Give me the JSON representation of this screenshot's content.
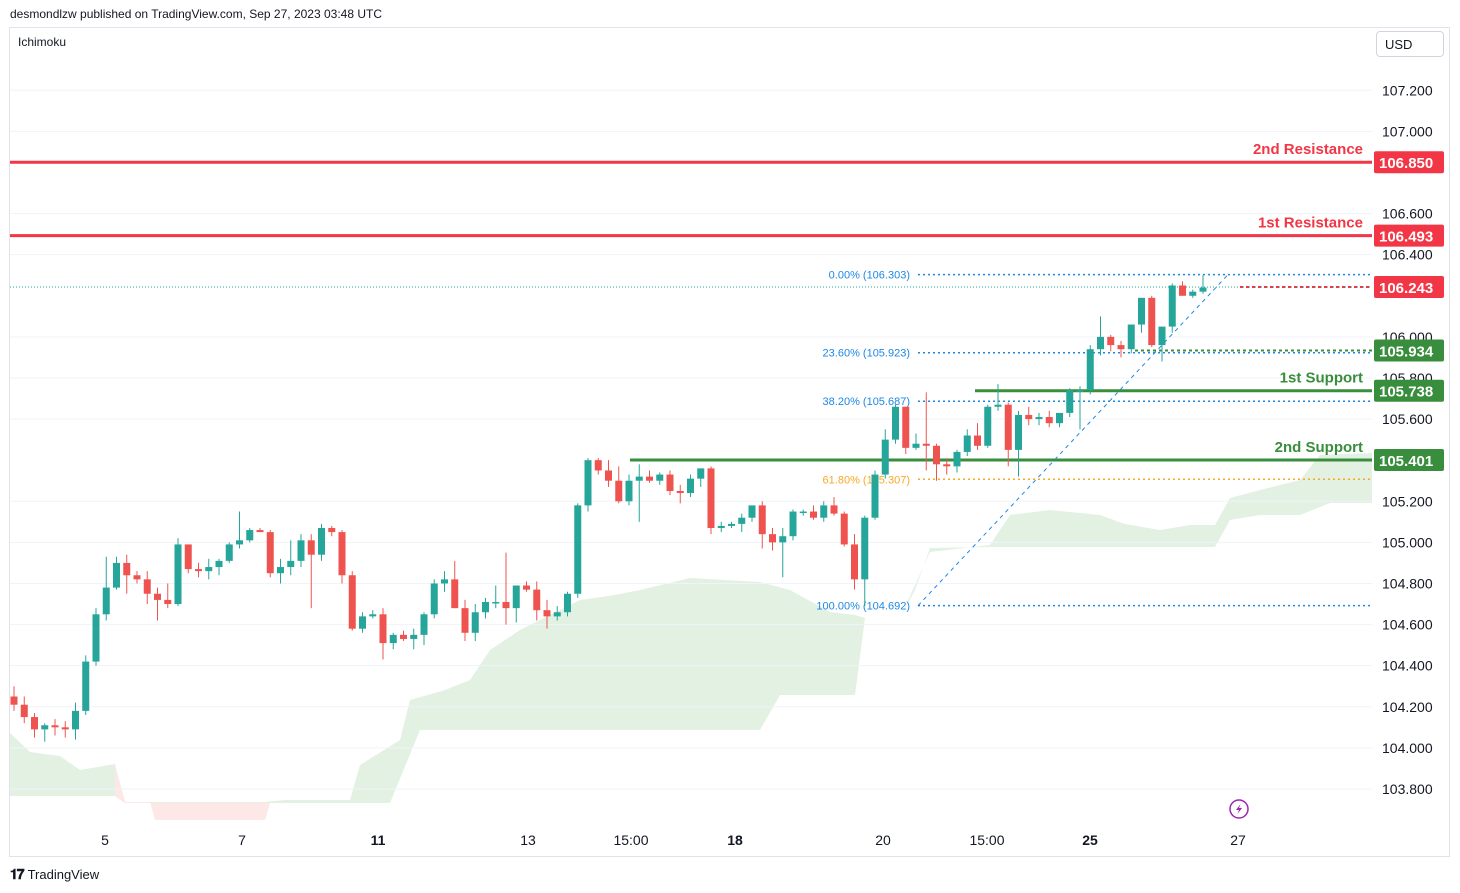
{
  "header": {
    "publisher": "desmondlzw published on TradingView.com, Sep 27, 2023 03:48 UTC"
  },
  "indicator": {
    "name": "Ichimoku"
  },
  "currency": {
    "label": "USD"
  },
  "footer": {
    "brand": "TradingView"
  },
  "colors": {
    "up": "#26a69a",
    "down": "#ef5350",
    "resistance": "#f23645",
    "support": "#388e3c",
    "fib": "#2962ff",
    "fib618": "#f9a825",
    "cloud_bull": "#e3f1e3",
    "cloud_bear": "#fde7e7",
    "grid": "#f0f3fa"
  },
  "chart_data": {
    "type": "candlestick",
    "symbol_note": "",
    "y_axis": {
      "min": 103.7,
      "max": 107.35,
      "ticks": [
        "107.200",
        "107.000",
        "106.600",
        "106.400",
        "106.000",
        "105.800",
        "105.600",
        "105.200",
        "105.000",
        "104.800",
        "104.600",
        "104.400",
        "104.200",
        "104.000",
        "103.800"
      ]
    },
    "x_axis": {
      "ticks": [
        {
          "label": "5",
          "bold": false
        },
        {
          "label": "7",
          "bold": false
        },
        {
          "label": "11",
          "bold": true
        },
        {
          "label": "13",
          "bold": false
        },
        {
          "label": "15:00",
          "bold": false
        },
        {
          "label": "18",
          "bold": true
        },
        {
          "label": "20",
          "bold": false
        },
        {
          "label": "15:00",
          "bold": false
        },
        {
          "label": "25",
          "bold": true
        },
        {
          "label": "27",
          "bold": false
        }
      ]
    },
    "levels": [
      {
        "name": "2nd Resistance",
        "value": 106.85,
        "tag": "106.850",
        "kind": "resistance"
      },
      {
        "name": "1st Resistance",
        "value": 106.493,
        "tag": "106.493",
        "kind": "resistance"
      },
      {
        "name": "1st Support",
        "value": 105.738,
        "tag": "105.738",
        "kind": "support"
      },
      {
        "name": "2nd Support",
        "value": 105.401,
        "tag": "105.401",
        "kind": "support"
      }
    ],
    "current_price": {
      "value": 106.243,
      "tag": "106.243"
    },
    "pivot": {
      "value": 105.934,
      "tag": "105.934"
    },
    "fibonacci": [
      {
        "label": "0.00% (106.303)",
        "value": 106.303
      },
      {
        "label": "23.60% (105.923)",
        "value": 105.923
      },
      {
        "label": "38.20% (105.687)",
        "value": 105.687
      },
      {
        "label": "61.80% (105.307)",
        "value": 105.307
      },
      {
        "label": "100.00% (104.692)",
        "value": 104.692
      }
    ],
    "candles": [
      [
        104.25,
        104.3,
        104.18,
        104.21
      ],
      [
        104.21,
        104.25,
        104.12,
        104.15
      ],
      [
        104.15,
        104.17,
        104.05,
        104.09
      ],
      [
        104.09,
        104.12,
        104.03,
        104.11
      ],
      [
        104.11,
        104.14,
        104.06,
        104.1
      ],
      [
        104.1,
        104.13,
        104.05,
        104.09
      ],
      [
        104.09,
        104.22,
        104.04,
        104.18
      ],
      [
        104.18,
        104.45,
        104.16,
        104.42
      ],
      [
        104.42,
        104.68,
        104.4,
        104.65
      ],
      [
        104.65,
        104.93,
        104.62,
        104.78
      ],
      [
        104.78,
        104.93,
        104.77,
        104.9
      ],
      [
        104.9,
        104.94,
        104.75,
        104.84
      ],
      [
        104.84,
        104.86,
        104.8,
        104.82
      ],
      [
        104.82,
        104.86,
        104.7,
        104.75
      ],
      [
        104.75,
        104.78,
        104.62,
        104.72
      ],
      [
        104.72,
        104.8,
        104.68,
        104.7
      ],
      [
        104.7,
        105.02,
        104.69,
        104.99
      ],
      [
        104.99,
        104.99,
        104.85,
        104.87
      ],
      [
        104.87,
        104.9,
        104.83,
        104.86
      ],
      [
        104.86,
        104.92,
        104.82,
        104.88
      ],
      [
        104.88,
        104.92,
        104.84,
        104.91
      ],
      [
        104.91,
        105.0,
        104.9,
        104.99
      ],
      [
        104.99,
        105.15,
        104.97,
        105.01
      ],
      [
        105.01,
        105.07,
        105.0,
        105.06
      ],
      [
        105.06,
        105.07,
        105.05,
        105.05
      ],
      [
        105.05,
        105.06,
        104.83,
        104.85
      ],
      [
        104.85,
        104.92,
        104.8,
        104.88
      ],
      [
        104.88,
        105.01,
        104.84,
        104.91
      ],
      [
        104.91,
        105.04,
        104.88,
        105.01
      ],
      [
        105.01,
        105.04,
        104.68,
        104.94
      ],
      [
        104.94,
        105.09,
        104.91,
        105.07
      ],
      [
        105.07,
        105.08,
        105.03,
        105.05
      ],
      [
        105.05,
        105.06,
        104.8,
        104.84
      ],
      [
        104.84,
        104.86,
        104.57,
        104.58
      ],
      [
        104.58,
        104.66,
        104.56,
        104.64
      ],
      [
        104.64,
        104.67,
        104.63,
        104.65
      ],
      [
        104.65,
        104.68,
        104.43,
        104.51
      ],
      [
        104.51,
        104.56,
        104.48,
        104.55
      ],
      [
        104.55,
        104.57,
        104.52,
        104.53
      ],
      [
        104.53,
        104.58,
        104.48,
        104.55
      ],
      [
        104.55,
        104.66,
        104.5,
        104.65
      ],
      [
        104.65,
        104.82,
        104.63,
        104.8
      ],
      [
        104.8,
        104.86,
        104.76,
        104.82
      ],
      [
        104.82,
        104.91,
        104.68,
        104.68
      ],
      [
        104.68,
        104.72,
        104.52,
        104.56
      ],
      [
        104.56,
        104.7,
        104.52,
        104.66
      ],
      [
        104.66,
        104.73,
        104.63,
        104.71
      ],
      [
        104.71,
        104.79,
        104.68,
        104.71
      ],
      [
        104.71,
        104.95,
        104.6,
        104.68
      ],
      [
        104.68,
        104.78,
        104.61,
        104.79
      ],
      [
        104.79,
        104.81,
        104.76,
        104.77
      ],
      [
        104.77,
        104.81,
        104.62,
        104.67
      ],
      [
        104.67,
        104.72,
        104.58,
        104.64
      ],
      [
        104.64,
        104.69,
        104.62,
        104.66
      ],
      [
        104.66,
        104.76,
        104.64,
        104.75
      ],
      [
        104.75,
        105.19,
        104.73,
        105.18
      ],
      [
        105.18,
        105.41,
        105.15,
        105.4
      ],
      [
        105.4,
        105.41,
        105.33,
        105.35
      ],
      [
        105.35,
        105.4,
        105.27,
        105.3
      ],
      [
        105.3,
        105.37,
        105.19,
        105.2
      ],
      [
        105.2,
        105.33,
        105.18,
        105.3
      ],
      [
        105.3,
        105.38,
        105.1,
        105.32
      ],
      [
        105.32,
        105.35,
        105.29,
        105.3
      ],
      [
        105.3,
        105.34,
        105.28,
        105.33
      ],
      [
        105.33,
        105.35,
        105.23,
        105.25
      ],
      [
        105.25,
        105.28,
        105.19,
        105.24
      ],
      [
        105.24,
        105.33,
        105.22,
        105.31
      ],
      [
        105.31,
        105.36,
        105.27,
        105.36
      ],
      [
        105.36,
        105.37,
        105.04,
        105.07
      ],
      [
        105.07,
        105.1,
        105.05,
        105.08
      ],
      [
        105.08,
        105.1,
        105.07,
        105.09
      ],
      [
        105.09,
        105.14,
        105.05,
        105.12
      ],
      [
        105.12,
        105.17,
        105.1,
        105.18
      ],
      [
        105.18,
        105.2,
        104.97,
        105.04
      ],
      [
        105.04,
        105.07,
        104.96,
        105.0
      ],
      [
        105.0,
        105.07,
        104.83,
        105.03
      ],
      [
        105.03,
        105.16,
        105.01,
        105.15
      ],
      [
        105.15,
        105.16,
        105.13,
        105.15
      ],
      [
        105.15,
        105.18,
        105.11,
        105.12
      ],
      [
        105.12,
        105.2,
        105.1,
        105.18
      ],
      [
        105.18,
        105.22,
        105.13,
        105.14
      ],
      [
        105.14,
        105.15,
        104.98,
        104.99
      ],
      [
        104.99,
        105.04,
        104.77,
        104.82
      ],
      [
        104.82,
        105.13,
        104.69,
        105.12
      ],
      [
        105.12,
        105.35,
        105.11,
        105.33
      ],
      [
        105.33,
        105.55,
        105.31,
        105.5
      ],
      [
        105.5,
        105.67,
        105.48,
        105.66
      ],
      [
        105.66,
        105.66,
        105.43,
        105.46
      ],
      [
        105.46,
        105.53,
        105.45,
        105.48
      ],
      [
        105.48,
        105.73,
        105.35,
        105.47
      ],
      [
        105.47,
        105.48,
        105.3,
        105.38
      ],
      [
        105.38,
        105.41,
        105.33,
        105.37
      ],
      [
        105.37,
        105.45,
        105.34,
        105.44
      ],
      [
        105.44,
        105.55,
        105.42,
        105.52
      ],
      [
        105.52,
        105.58,
        105.45,
        105.47
      ],
      [
        105.47,
        105.67,
        105.46,
        105.66
      ],
      [
        105.66,
        105.77,
        105.64,
        105.67
      ],
      [
        105.67,
        105.68,
        105.37,
        105.45
      ],
      [
        105.45,
        105.64,
        105.32,
        105.62
      ],
      [
        105.62,
        105.66,
        105.57,
        105.6
      ],
      [
        105.6,
        105.63,
        105.57,
        105.61
      ],
      [
        105.61,
        105.64,
        105.56,
        105.58
      ],
      [
        105.58,
        105.62,
        105.56,
        105.63
      ],
      [
        105.63,
        105.75,
        105.61,
        105.74
      ],
      [
        105.74,
        105.76,
        105.55,
        105.74
      ],
      [
        105.74,
        105.96,
        105.72,
        105.94
      ],
      [
        105.94,
        106.1,
        105.91,
        106.0
      ],
      [
        106.0,
        106.01,
        105.93,
        105.96
      ],
      [
        105.96,
        105.98,
        105.9,
        105.94
      ],
      [
        105.94,
        106.06,
        105.92,
        106.06
      ],
      [
        106.06,
        106.19,
        106.02,
        106.19
      ],
      [
        106.19,
        106.2,
        105.95,
        105.96
      ],
      [
        105.96,
        106.04,
        105.88,
        106.05
      ],
      [
        106.05,
        106.26,
        106.02,
        106.25
      ],
      [
        106.25,
        106.27,
        106.2,
        106.2
      ],
      [
        106.2,
        106.23,
        106.19,
        106.22
      ],
      [
        106.22,
        106.3,
        106.21,
        106.24
      ]
    ]
  }
}
